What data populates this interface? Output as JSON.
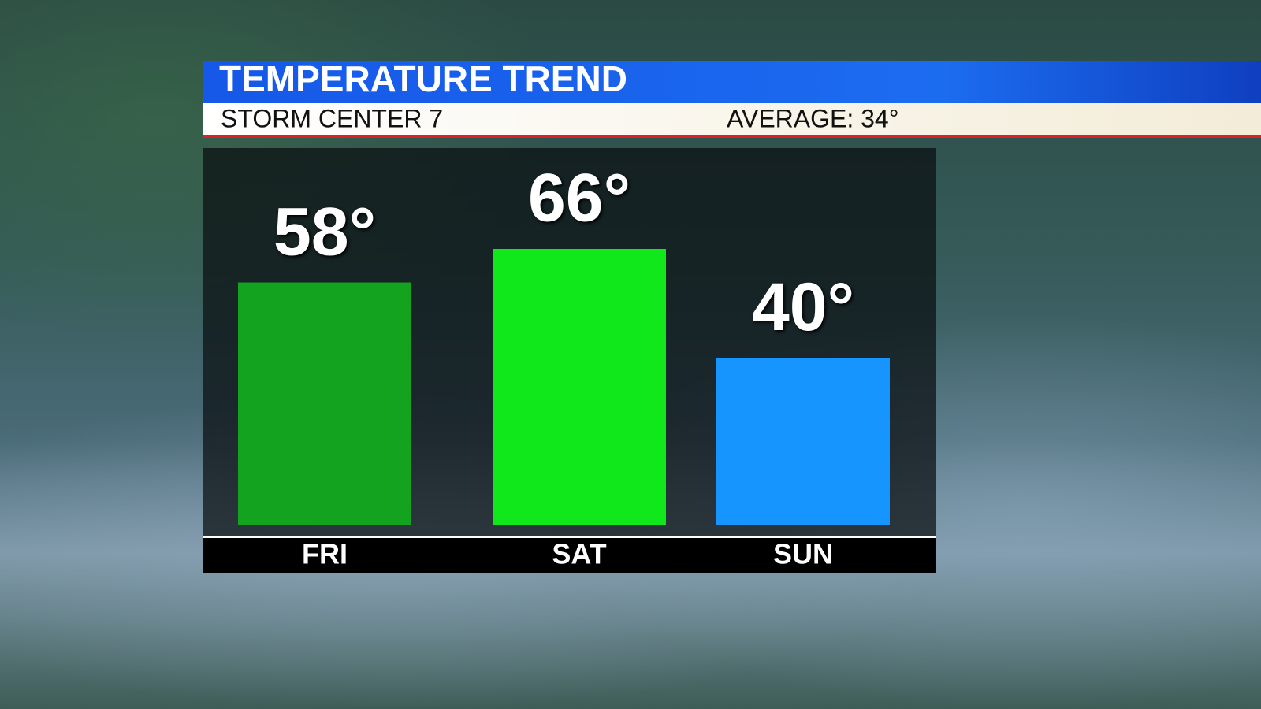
{
  "chart_data": {
    "type": "bar",
    "title": "TEMPERATURE TREND",
    "subtitle": "STORM CENTER 7",
    "annotation": "AVERAGE: 34°",
    "categories": [
      "FRI",
      "SAT",
      "SUN"
    ],
    "values": [
      58,
      66,
      40
    ],
    "value_labels": [
      "58°",
      "66°",
      "40°"
    ],
    "colors": [
      "#13a31f",
      "#11e81b",
      "#1795ff"
    ]
  }
}
